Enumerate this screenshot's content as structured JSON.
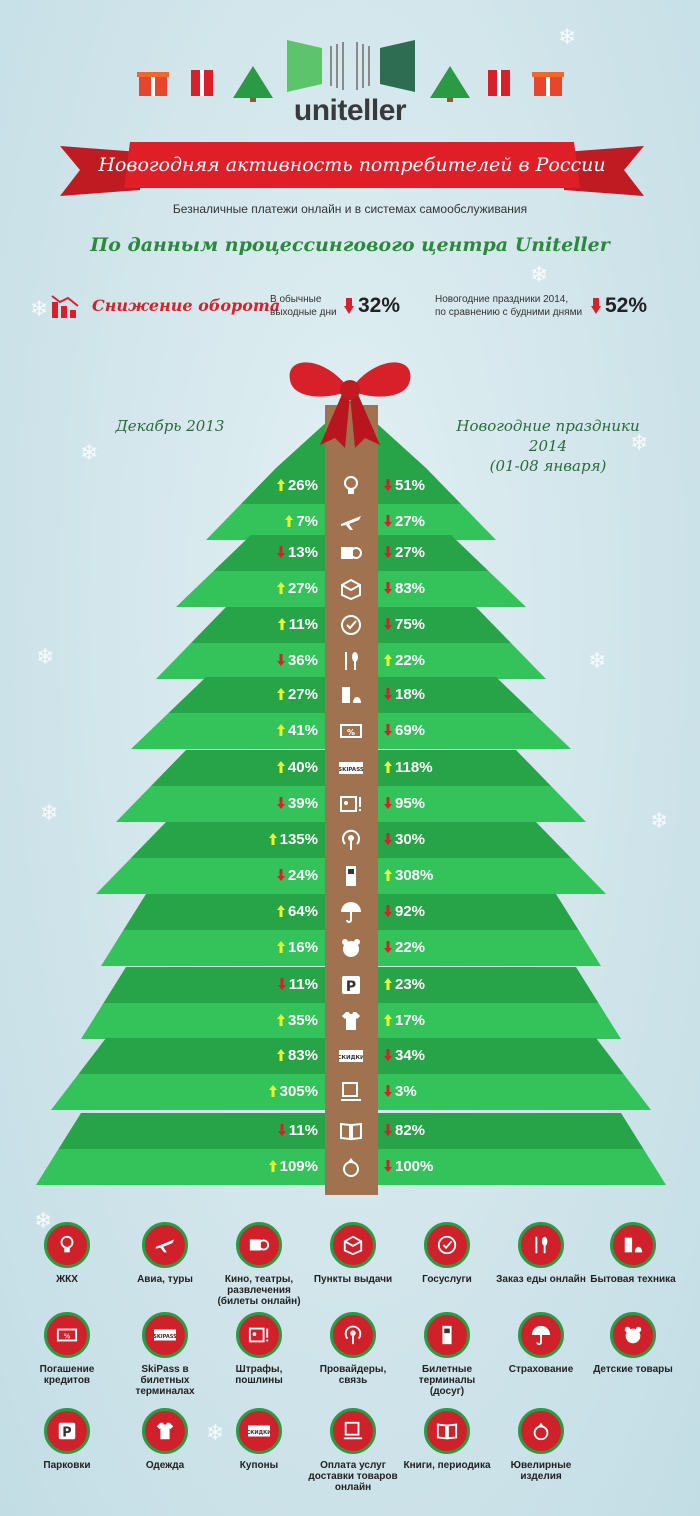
{
  "header": {
    "brand": "uniteller",
    "banner_title": "Новогодняя активность потребителей в России",
    "subtitle": "Безналичные платежи онлайн и в системах самообслуживания",
    "source": "По данным процессингового центра Uniteller"
  },
  "drop": {
    "label": "Снижение оборота",
    "weekend_note_1": "В обычные",
    "weekend_note_2": "выходные дни",
    "weekend_value": "32%",
    "holiday_note_1": "Новогодние праздники 2014,",
    "holiday_note_2": "по сравнению с будними днями",
    "holiday_value": "52%"
  },
  "columns": {
    "left": "Декабрь 2013",
    "right_1": "Новогодние праздники 2014",
    "right_2": "(01-08 января)"
  },
  "rows": [
    {
      "left": "26%",
      "left_dir": "up",
      "right": "51%",
      "right_dir": "down",
      "icon": "bulb"
    },
    {
      "left": "7%",
      "left_dir": "up",
      "right": "27%",
      "right_dir": "down",
      "icon": "plane"
    },
    {
      "left": "13%",
      "left_dir": "down",
      "right": "27%",
      "right_dir": "down",
      "icon": "ticket"
    },
    {
      "left": "27%",
      "left_dir": "up",
      "right": "83%",
      "right_dir": "down",
      "icon": "box"
    },
    {
      "left": "11%",
      "left_dir": "up",
      "right": "75%",
      "right_dir": "down",
      "icon": "gov"
    },
    {
      "left": "36%",
      "left_dir": "down",
      "right": "22%",
      "right_dir": "up",
      "icon": "food"
    },
    {
      "left": "27%",
      "left_dir": "up",
      "right": "18%",
      "right_dir": "down",
      "icon": "appliance"
    },
    {
      "left": "41%",
      "left_dir": "up",
      "right": "69%",
      "right_dir": "down",
      "icon": "credit"
    },
    {
      "left": "40%",
      "left_dir": "up",
      "right": "118%",
      "right_dir": "up",
      "icon": "skipass"
    },
    {
      "left": "39%",
      "left_dir": "down",
      "right": "95%",
      "right_dir": "down",
      "icon": "fine"
    },
    {
      "left": "135%",
      "left_dir": "up",
      "right": "30%",
      "right_dir": "down",
      "icon": "provider"
    },
    {
      "left": "24%",
      "left_dir": "down",
      "right": "308%",
      "right_dir": "up",
      "icon": "terminal"
    },
    {
      "left": "64%",
      "left_dir": "up",
      "right": "92%",
      "right_dir": "down",
      "icon": "umbrella"
    },
    {
      "left": "16%",
      "left_dir": "up",
      "right": "22%",
      "right_dir": "down",
      "icon": "bear"
    },
    {
      "left": "11%",
      "left_dir": "down",
      "right": "23%",
      "right_dir": "up",
      "icon": "parking"
    },
    {
      "left": "35%",
      "left_dir": "up",
      "right": "17%",
      "right_dir": "up",
      "icon": "shirt"
    },
    {
      "left": "83%",
      "left_dir": "up",
      "right": "34%",
      "right_dir": "down",
      "icon": "coupon"
    },
    {
      "left": "305%",
      "left_dir": "up",
      "right": "3%",
      "right_dir": "down",
      "icon": "delivery"
    },
    {
      "left": "11%",
      "left_dir": "down",
      "right": "82%",
      "right_dir": "down",
      "icon": "book"
    },
    {
      "left": "109%",
      "left_dir": "up",
      "right": "100%",
      "right_dir": "down",
      "icon": "ring"
    }
  ],
  "icon_texts": {
    "skipass": "SKIPASS",
    "coupon": "СКИДКИ",
    "parking": "P"
  },
  "legend": [
    {
      "label": "ЖКХ",
      "icon": "bulb"
    },
    {
      "label": "Авиа, туры",
      "icon": "plane"
    },
    {
      "label": "Кино, театры, развлечения (билеты онлайн)",
      "icon": "ticket"
    },
    {
      "label": "Пункты выдачи",
      "icon": "box"
    },
    {
      "label": "Госуслуги",
      "icon": "gov"
    },
    {
      "label": "Заказ еды онлайн",
      "icon": "food"
    },
    {
      "label": "Бытовая техника",
      "icon": "appliance"
    },
    {
      "label": "Погашение кредитов",
      "icon": "credit"
    },
    {
      "label": "SkiPass в билетных терминалах",
      "icon": "skipass"
    },
    {
      "label": "Штрафы, пошлины",
      "icon": "fine"
    },
    {
      "label": "Провайдеры, связь",
      "icon": "provider"
    },
    {
      "label": "Билетные терминалы (досуг)",
      "icon": "terminal"
    },
    {
      "label": "Страхование",
      "icon": "umbrella"
    },
    {
      "label": "Детские товары",
      "icon": "bear"
    },
    {
      "label": "Парковки",
      "icon": "parking"
    },
    {
      "label": "Одежда",
      "icon": "shirt"
    },
    {
      "label": "Купоны",
      "icon": "coupon"
    },
    {
      "label": "Оплата услуг доставки товаров онлайн",
      "icon": "delivery"
    },
    {
      "label": "Книги, периодика",
      "icon": "book"
    },
    {
      "label": "Ювелирные изделия",
      "icon": "ring"
    }
  ],
  "colors": {
    "red": "#d8202a",
    "green_dark": "#26a447",
    "green_light": "#34c25a",
    "trunk": "#a0724f",
    "up_arrow": "#e8ff2a"
  }
}
